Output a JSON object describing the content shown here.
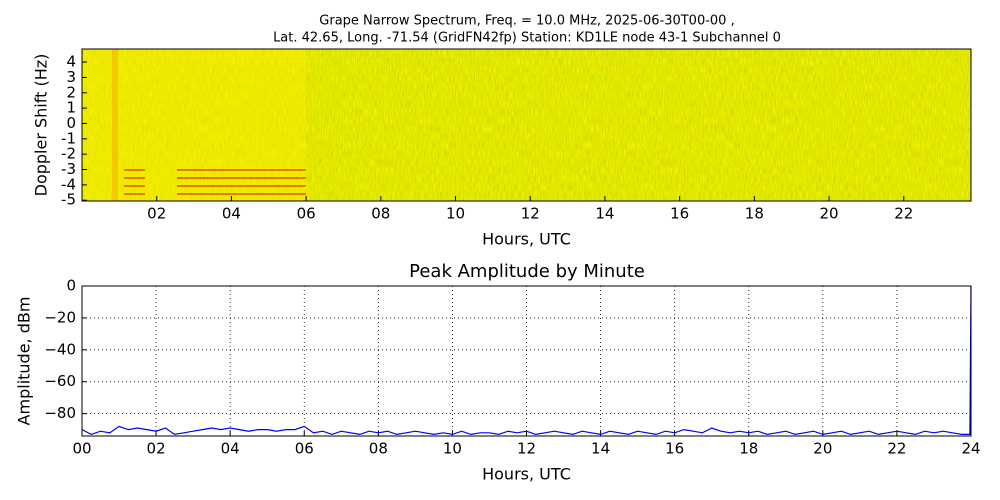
{
  "chart_data": [
    {
      "type": "heatmap",
      "title": [
        "Grape Narrow Spectrum, Freq. = 10.0 MHz, 2025-06-30T00-00 ,",
        "Lat.  42.65, Long. -71.54 (GridFN42fp) Station: KD1LE node 43-1 Subchannel 0"
      ],
      "xlabel": "Hours, UTC",
      "ylabel": "Doppler Shift (Hz)",
      "xlim": [
        0,
        23.8
      ],
      "ylim": [
        -5.05,
        4.85
      ],
      "xticks": [
        {
          "value": 2,
          "label": "02"
        },
        {
          "value": 4,
          "label": "04"
        },
        {
          "value": 6,
          "label": "06"
        },
        {
          "value": 8,
          "label": "08"
        },
        {
          "value": 10,
          "label": "10"
        },
        {
          "value": 12,
          "label": "12"
        },
        {
          "value": 14,
          "label": "14"
        },
        {
          "value": 16,
          "label": "16"
        },
        {
          "value": 18,
          "label": "18"
        },
        {
          "value": 20,
          "label": "20"
        },
        {
          "value": 22,
          "label": "22"
        }
      ],
      "yticks": [
        -5,
        -4,
        -3,
        -2,
        -1,
        0,
        1,
        2,
        3,
        4
      ],
      "grid": false
    },
    {
      "type": "line",
      "title": "Peak Amplitude by Minute",
      "xlabel": "Hours, UTC",
      "ylabel": "Amplitude, dBm",
      "xlim": [
        0,
        24
      ],
      "ylim": [
        -94,
        0
      ],
      "xticks": [
        {
          "value": 0,
          "label": "00"
        },
        {
          "value": 2,
          "label": "02"
        },
        {
          "value": 4,
          "label": "04"
        },
        {
          "value": 6,
          "label": "06"
        },
        {
          "value": 8,
          "label": "08"
        },
        {
          "value": 10,
          "label": "10"
        },
        {
          "value": 12,
          "label": "12"
        },
        {
          "value": 14,
          "label": "14"
        },
        {
          "value": 16,
          "label": "16"
        },
        {
          "value": 18,
          "label": "18"
        },
        {
          "value": 20,
          "label": "20"
        },
        {
          "value": 22,
          "label": "22"
        },
        {
          "value": 24,
          "label": "24"
        }
      ],
      "yticks": [
        0,
        {
          "value": -20,
          "label": "−20"
        },
        {
          "value": -40,
          "label": "−40"
        },
        {
          "value": -60,
          "label": "−60"
        },
        {
          "value": -80,
          "label": "−80"
        }
      ],
      "grid": true,
      "color": "#0000ff",
      "x": [
        0,
        0.25,
        0.5,
        0.75,
        1,
        1.25,
        1.5,
        1.75,
        2,
        2.25,
        2.5,
        2.75,
        3,
        3.25,
        3.5,
        3.75,
        4,
        4.25,
        4.5,
        4.75,
        5,
        5.25,
        5.5,
        5.75,
        6,
        6.25,
        6.5,
        6.75,
        7,
        7.25,
        7.5,
        7.75,
        8,
        8.25,
        8.5,
        8.75,
        9,
        9.25,
        9.5,
        9.75,
        10,
        10.25,
        10.5,
        10.75,
        11,
        11.25,
        11.5,
        11.75,
        12,
        12.25,
        12.5,
        12.75,
        13,
        13.25,
        13.5,
        13.75,
        14,
        14.25,
        14.5,
        14.75,
        15,
        15.25,
        15.5,
        15.75,
        16,
        16.25,
        16.5,
        16.75,
        17,
        17.25,
        17.5,
        17.75,
        18,
        18.25,
        18.5,
        18.75,
        19,
        19.25,
        19.5,
        19.75,
        20,
        20.25,
        20.5,
        20.75,
        21,
        21.25,
        21.5,
        21.75,
        22,
        22.25,
        22.5,
        22.75,
        23,
        23.25,
        23.5,
        23.75,
        23.97,
        24
      ],
      "values": [
        -90,
        -93,
        -91,
        -92,
        -88,
        -90,
        -89,
        -90,
        -91,
        -89,
        -93,
        -92,
        -91,
        -90,
        -89,
        -90,
        -89,
        -90,
        -91,
        -90,
        -90,
        -91,
        -90,
        -90,
        -88,
        -92,
        -91,
        -93,
        -91,
        -92,
        -93,
        -91,
        -92,
        -91,
        -93,
        -92,
        -91,
        -92,
        -93,
        -92,
        -93,
        -91,
        -93,
        -92,
        -92,
        -93,
        -91,
        -92,
        -91,
        -93,
        -92,
        -91,
        -92,
        -93,
        -91,
        -92,
        -93,
        -91,
        -92,
        -93,
        -91,
        -92,
        -93,
        -91,
        -92,
        -90,
        -91,
        -92,
        -89,
        -91,
        -92,
        -91,
        -92,
        -91,
        -93,
        -92,
        -91,
        -93,
        -92,
        -91,
        -93,
        -92,
        -91,
        -93,
        -92,
        -91,
        -93,
        -92,
        -91,
        -92,
        -93,
        -91,
        -92,
        -91,
        -92,
        -93,
        -93,
        0
      ]
    }
  ]
}
